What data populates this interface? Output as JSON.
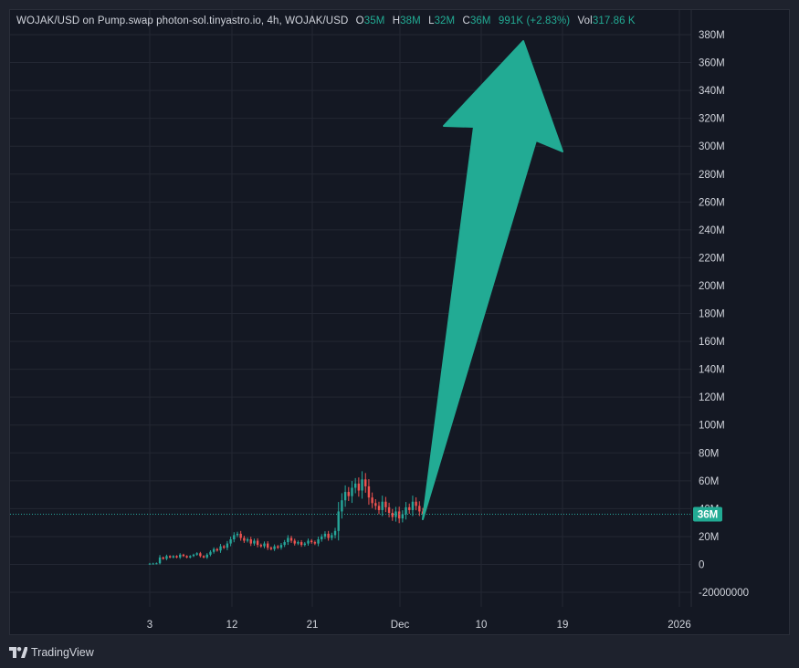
{
  "legend": {
    "title": "WOJAK/USD on Pump.swap photon-sol.tinyastro.io, 4h, WOJAK/USD",
    "o_label": "O",
    "o_value": "35M",
    "h_label": "H",
    "h_value": "38M",
    "l_label": "L",
    "l_value": "32M",
    "c_label": "C",
    "c_value": "36M",
    "change": "991K (+2.83%)",
    "vol_label": "Vol",
    "vol_value": "317.86 K"
  },
  "colors": {
    "up": "#26a69a",
    "down": "#ef5350",
    "arrow": "#22ab94",
    "price_badge": "#22ab94"
  },
  "footer": {
    "brand": "TradingView",
    "logo_icon": "tradingview-logo-icon"
  },
  "price_badge": "36M",
  "chart_data": {
    "type": "candlestick",
    "y_ticks": [
      "380M",
      "360M",
      "340M",
      "320M",
      "300M",
      "280M",
      "260M",
      "240M",
      "220M",
      "200M",
      "180M",
      "160M",
      "140M",
      "120M",
      "100M",
      "80M",
      "60M",
      "40M",
      "20M",
      "0",
      "-20000000"
    ],
    "y_tick_values": [
      380,
      360,
      340,
      320,
      300,
      280,
      260,
      240,
      220,
      200,
      180,
      160,
      140,
      120,
      100,
      80,
      60,
      40,
      20,
      0,
      -20
    ],
    "x_ticks": [
      "3",
      "12",
      "21",
      "Dec",
      "10",
      "19",
      "2026"
    ],
    "ylim": [
      -20,
      380
    ],
    "current_price": 36,
    "series": [
      {
        "approx_close_values": [
          0.5,
          0.6,
          0.8,
          5,
          4,
          6,
          5,
          6,
          5,
          7,
          6,
          5,
          6,
          7,
          8,
          6,
          5,
          7,
          9,
          11,
          10,
          13,
          12,
          15,
          18,
          21,
          22,
          19,
          17,
          18,
          15,
          17,
          14,
          13,
          15,
          12,
          11,
          13,
          12,
          14,
          16,
          19,
          17,
          15,
          16,
          14,
          15,
          17,
          16,
          15,
          18,
          20,
          22,
          19,
          21,
          24,
          38,
          46,
          52,
          49,
          55,
          58,
          53,
          61,
          56,
          48,
          44,
          42,
          39,
          45,
          41,
          37,
          34,
          38,
          33,
          36,
          41,
          39,
          45,
          42,
          38,
          36
        ]
      }
    ],
    "annotation": "arrow",
    "grid": true
  }
}
